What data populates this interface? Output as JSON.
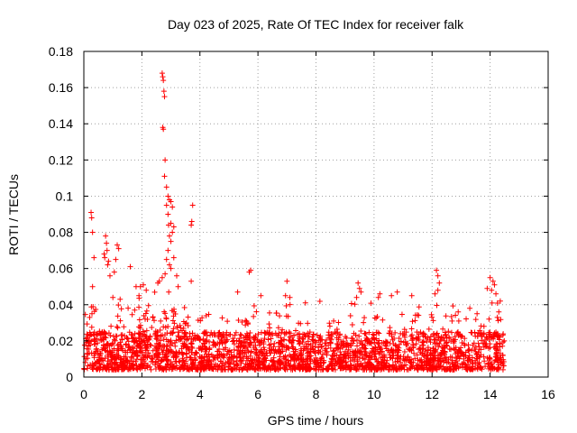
{
  "chart_data": {
    "type": "scatter",
    "title": "Day 023 of 2025, Rate Of TEC Index for receiver falk",
    "xlabel": "GPS time / hours",
    "ylabel": "ROTI / TECUs",
    "xlim": [
      0,
      16
    ],
    "ylim": [
      0,
      0.18
    ],
    "x_ticks": [
      0,
      2,
      4,
      6,
      8,
      10,
      12,
      14,
      16
    ],
    "x_tick_labels": [
      "0",
      "2",
      "4",
      "6",
      "8",
      "10",
      "12",
      "14",
      "16"
    ],
    "y_ticks": [
      0,
      0.02,
      0.04,
      0.06,
      0.08,
      0.1,
      0.12,
      0.14,
      0.16,
      0.18
    ],
    "y_tick_labels": [
      "0",
      "0.02",
      "0.04",
      "0.06",
      "0.08",
      "0.1",
      "0.12",
      "0.14",
      "0.16",
      "0.18"
    ],
    "grid": true,
    "marker": "plus",
    "series": [
      {
        "name": "ROTI",
        "color": "#ff0000",
        "data_range_x": [
          0,
          14.5
        ],
        "typical_y_range": [
          0.004,
          0.025
        ],
        "points": [
          [
            0.25,
            0.091
          ],
          [
            0.27,
            0.088
          ],
          [
            0.3,
            0.08
          ],
          [
            0.35,
            0.066
          ],
          [
            0.3,
            0.05
          ],
          [
            0.2,
            0.033
          ],
          [
            0.28,
            0.035
          ],
          [
            0.75,
            0.078
          ],
          [
            0.78,
            0.074
          ],
          [
            0.8,
            0.07
          ],
          [
            0.72,
            0.066
          ],
          [
            0.85,
            0.064
          ],
          [
            0.7,
            0.068
          ],
          [
            0.82,
            0.062
          ],
          [
            1.15,
            0.073
          ],
          [
            1.2,
            0.071
          ],
          [
            1.1,
            0.065
          ],
          [
            1.05,
            0.058
          ],
          [
            0.9,
            0.056
          ],
          [
            1.0,
            0.044
          ],
          [
            1.25,
            0.043
          ],
          [
            1.6,
            0.061
          ],
          [
            1.8,
            0.05
          ],
          [
            1.95,
            0.05
          ],
          [
            2.05,
            0.051
          ],
          [
            2.15,
            0.048
          ],
          [
            1.9,
            0.045
          ],
          [
            2.7,
            0.168
          ],
          [
            2.72,
            0.166
          ],
          [
            2.74,
            0.164
          ],
          [
            2.76,
            0.158
          ],
          [
            2.78,
            0.155
          ],
          [
            2.72,
            0.138
          ],
          [
            2.74,
            0.137
          ],
          [
            2.8,
            0.12
          ],
          [
            2.78,
            0.111
          ],
          [
            2.85,
            0.105
          ],
          [
            2.9,
            0.1
          ],
          [
            2.95,
            0.098
          ],
          [
            3.0,
            0.097
          ],
          [
            2.85,
            0.095
          ],
          [
            3.05,
            0.094
          ],
          [
            2.9,
            0.09
          ],
          [
            3.0,
            0.085
          ],
          [
            2.92,
            0.084
          ],
          [
            3.1,
            0.083
          ],
          [
            3.05,
            0.08
          ],
          [
            2.95,
            0.078
          ],
          [
            3.0,
            0.075
          ],
          [
            2.9,
            0.07
          ],
          [
            3.1,
            0.066
          ],
          [
            2.85,
            0.065
          ],
          [
            2.95,
            0.062
          ],
          [
            3.0,
            0.06
          ],
          [
            2.8,
            0.057
          ],
          [
            2.7,
            0.055
          ],
          [
            2.6,
            0.053
          ],
          [
            2.55,
            0.052
          ],
          [
            3.2,
            0.056
          ],
          [
            3.25,
            0.05
          ],
          [
            3.75,
            0.095
          ],
          [
            3.72,
            0.086
          ],
          [
            3.7,
            0.084
          ],
          [
            3.7,
            0.053
          ],
          [
            5.75,
            0.059
          ],
          [
            5.7,
            0.058
          ],
          [
            5.3,
            0.047
          ],
          [
            6.1,
            0.045
          ],
          [
            7.0,
            0.053
          ],
          [
            6.95,
            0.045
          ],
          [
            7.1,
            0.044
          ],
          [
            9.45,
            0.052
          ],
          [
            9.5,
            0.049
          ],
          [
            9.55,
            0.047
          ],
          [
            9.4,
            0.044
          ],
          [
            10.2,
            0.046
          ],
          [
            10.15,
            0.044
          ],
          [
            10.6,
            0.045
          ],
          [
            10.8,
            0.047
          ],
          [
            11.3,
            0.045
          ],
          [
            12.15,
            0.059
          ],
          [
            12.2,
            0.056
          ],
          [
            12.25,
            0.052
          ],
          [
            12.2,
            0.048
          ],
          [
            12.1,
            0.046
          ],
          [
            12.9,
            0.036
          ],
          [
            13.3,
            0.038
          ],
          [
            13.55,
            0.035
          ],
          [
            14.0,
            0.055
          ],
          [
            14.1,
            0.053
          ],
          [
            14.15,
            0.051
          ],
          [
            13.9,
            0.049
          ],
          [
            14.05,
            0.048
          ],
          [
            14.2,
            0.046
          ],
          [
            14.35,
            0.042
          ],
          [
            14.3,
            0.036
          ],
          [
            14.25,
            0.033
          ]
        ]
      }
    ]
  }
}
